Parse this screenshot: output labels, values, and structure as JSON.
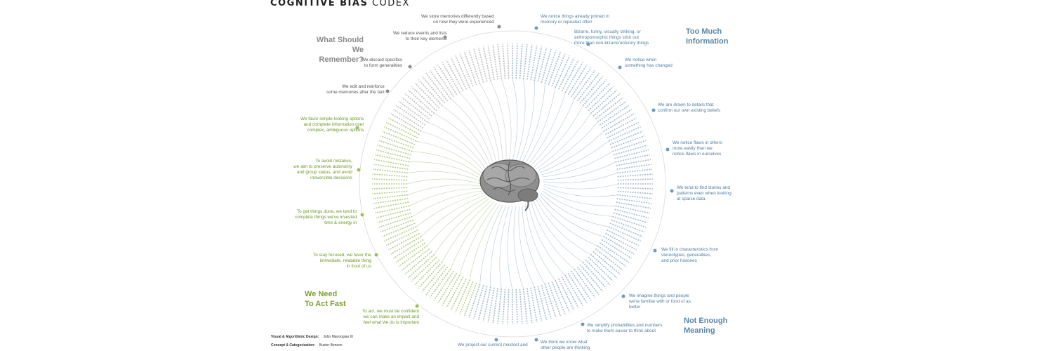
{
  "title": {
    "bold": "COGNITIVE BIAS",
    "light": "CODEX"
  },
  "quadrants": {
    "remember": "What Should We\nRemember?",
    "information": "Too Much\nInformation",
    "act": "We Need\nTo Act Fast",
    "meaning": "Not Enough\nMeaning"
  },
  "subcategories": {
    "rem_1": "We store memories differently based\non how they were experienced",
    "rem_2": "We reduce events and lists\nto their key elements",
    "rem_3": "We discard specifics\nto form generalities",
    "rem_4": "We edit and reinforce\nsome memories after the fact",
    "info_1": "We notice things already primed in\nmemory or repeated often",
    "info_2": "Bizarre, funny, visually striking, or\nanthropomorphic things stick out\nmore than non-bizarre/unfunny things",
    "info_3": "We notice when\nsomething has changed",
    "info_4": "We are drawn to details that\nconfirm our own existing beliefs",
    "info_5": "We notice flaws in others\nmore easily than we\nnotice flaws in ourselves",
    "mean_1": "We tend to find stories and\npatterns even when looking\nat sparse data",
    "mean_2": "We fill in characteristics from\nstereotypes, generalities,\nand prior histories",
    "mean_3": "We imagine things and people\nwe're familiar with or fond of as\nbetter",
    "mean_4": "We simplify probabilities and numbers\nto make them easier to think about",
    "mean_5": "We think we know what\nother people are thinking",
    "mean_6": "We project our current mindset and",
    "act_1": "We favor simple-looking options\nand complete information over\ncomplex, ambiguous options",
    "act_2": "To avoid mistakes,\nwe aim to preserve autonomy\nand group status, and avoid\nirreversible decisions",
    "act_3": "To get things done, we tend to\ncomplete things we've invested\ntime & energy in",
    "act_4": "To stay focused, we favor the\nimmediate, relatable thing\nin front of us",
    "act_5": "To act, we must be confident\nwe can make an impact and\nfeel what we do is important"
  },
  "credits": {
    "design_label": "Visual & Algorithmic Design:",
    "design_name": "John Manoogian III",
    "concept_label": "Concept & Categorization:",
    "concept_name": "Buster Benson"
  },
  "colors": {
    "gray": "#8c8c8c",
    "blue": "#5a87a8",
    "green": "#7aa032"
  },
  "icons": {
    "center": "brain-icon"
  }
}
